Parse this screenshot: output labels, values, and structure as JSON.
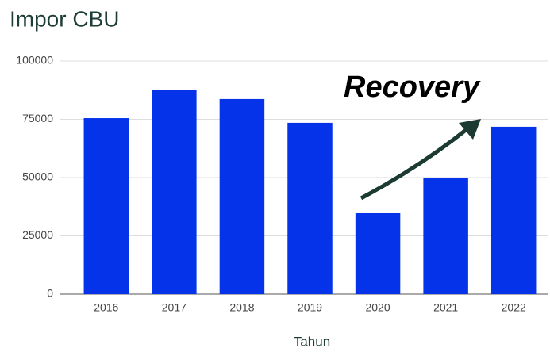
{
  "chart_data": {
    "type": "bar",
    "title": "Impor CBU",
    "xlabel": "Tahun",
    "annotation": "Recovery",
    "categories": [
      "2016",
      "2017",
      "2018",
      "2019",
      "2020",
      "2021",
      "2022"
    ],
    "values": [
      75500,
      87500,
      83700,
      73500,
      34700,
      49700,
      71800
    ],
    "color": "#0433ea",
    "ylim": [
      0,
      100000
    ],
    "yticks": [
      0,
      25000,
      50000,
      75000,
      100000
    ],
    "grid": true
  }
}
